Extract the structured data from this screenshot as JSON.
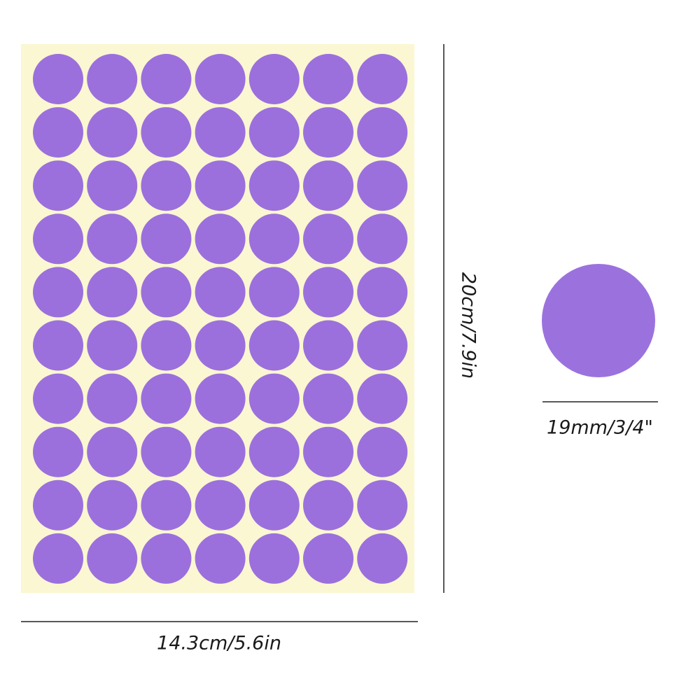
{
  "dimensions": {
    "width_label": "14.3cm/5.6in",
    "height_label": "20cm/7.9in",
    "dot_label": "19mm/3/4\""
  }
}
